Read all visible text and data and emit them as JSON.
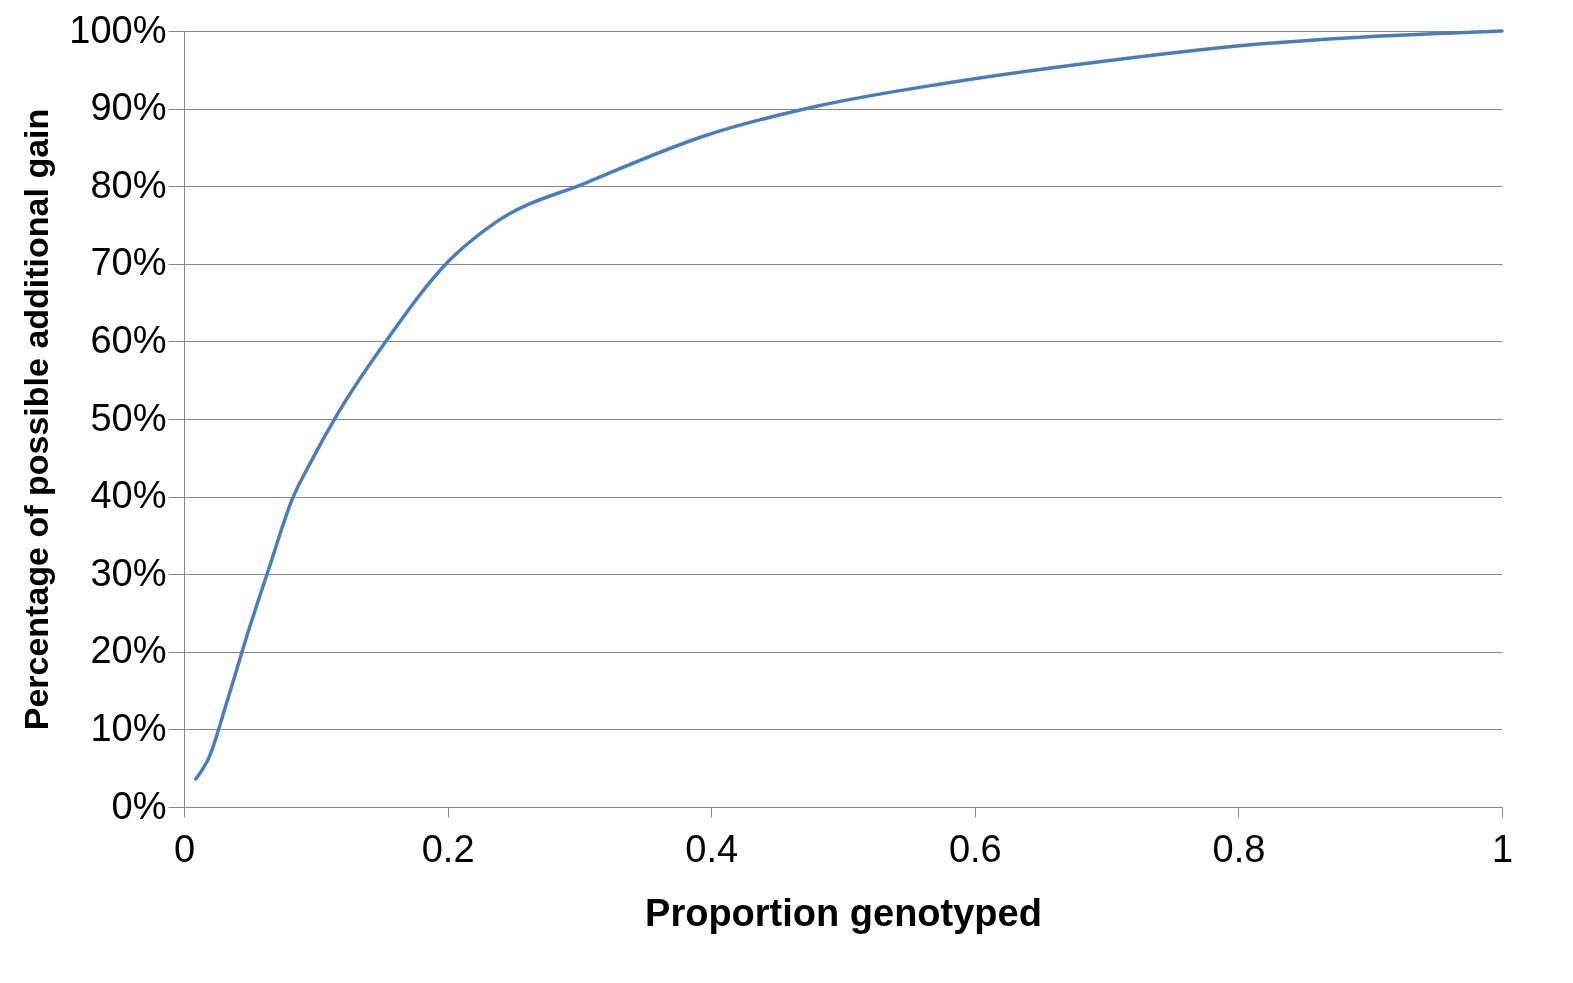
{
  "chart_data": {
    "type": "line",
    "xlabel": "Proportion genotyped",
    "ylabel": "Percentage of possible additional gain",
    "x": [
      0.009,
      0.019,
      0.033,
      0.048,
      0.064,
      0.082,
      0.097,
      0.116,
      0.154,
      0.2,
      0.237,
      0.306,
      0.397,
      0.48,
      0.579,
      0.693,
      0.807,
      0.882,
      1
    ],
    "series": [
      {
        "color": "#4a7ebb",
        "values": [
          3.6,
          6.4,
          13.8,
          22.2,
          30.5,
          39.6,
          44.7,
          50.5,
          60.2,
          70.2,
          75.4,
          80.5,
          86.6,
          90.3,
          93.3,
          96.0,
          98.2,
          99.1,
          100
        ]
      }
    ],
    "xlim": [
      0,
      1
    ],
    "xticks": [
      0,
      0.2,
      0.4,
      0.6,
      0.8,
      1
    ],
    "ylim": [
      0,
      100
    ],
    "yticks": [
      {
        "value": 0,
        "label": "0%"
      },
      {
        "value": 10,
        "label": "10%"
      },
      {
        "value": 20,
        "label": "20%"
      },
      {
        "value": 30,
        "label": "30%"
      },
      {
        "value": 40,
        "label": "40%"
      },
      {
        "value": 50,
        "label": "50%"
      },
      {
        "value": 60,
        "label": "60%"
      },
      {
        "value": 70,
        "label": "70%"
      },
      {
        "value": 80,
        "label": "80%"
      },
      {
        "value": 90,
        "label": "90%"
      },
      {
        "value": 100,
        "label": "100%"
      }
    ],
    "grid": "y",
    "marker": "none",
    "line_style": "solid"
  }
}
